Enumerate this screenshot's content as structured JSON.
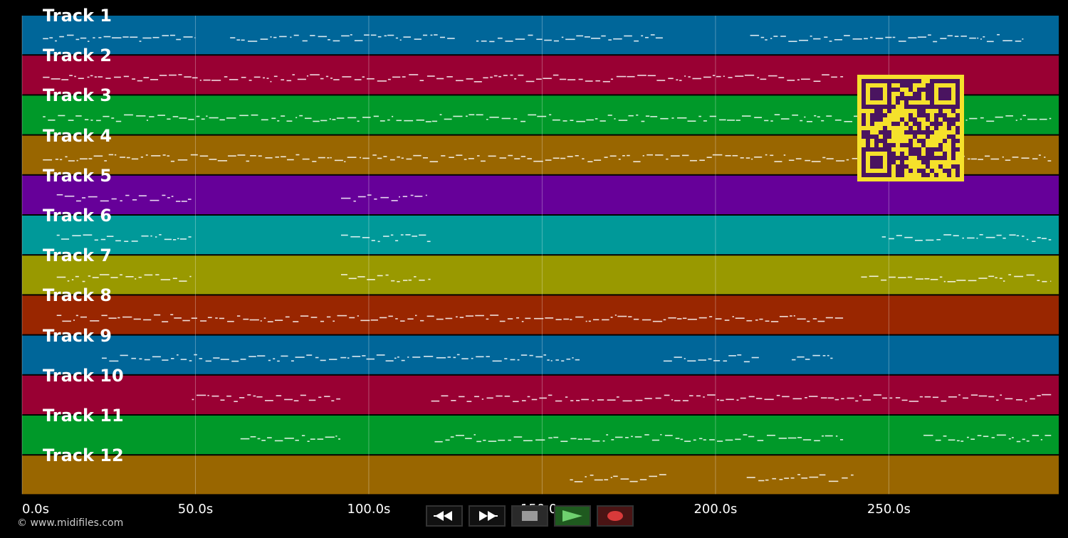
{
  "tracks": [
    {
      "label": "Track 1",
      "color": "#006699"
    },
    {
      "label": "Track 2",
      "color": "#990033"
    },
    {
      "label": "Track 3",
      "color": "#009929"
    },
    {
      "label": "Track 4",
      "color": "#996600"
    },
    {
      "label": "Track 5",
      "color": "#660099"
    },
    {
      "label": "Track 6",
      "color": "#009999"
    },
    {
      "label": "Track 7",
      "color": "#999900"
    },
    {
      "label": "Track 8",
      "color": "#992600"
    },
    {
      "label": "Track 9",
      "color": "#006699"
    },
    {
      "label": "Track 10",
      "color": "#990033"
    },
    {
      "label": "Track 11",
      "color": "#009929"
    },
    {
      "label": "Track 12",
      "color": "#996600"
    }
  ],
  "timeline": {
    "ticks": [
      "0.0s",
      "50.0s",
      "100.0s",
      "150.0s",
      "200.0s",
      "250.0s"
    ],
    "tick_values": [
      0,
      50,
      100,
      150,
      200,
      250
    ],
    "max_seconds": 299
  },
  "note_activity": [
    [
      [
        6,
        50
      ],
      [
        60,
        125
      ],
      [
        131,
        185
      ],
      [
        210,
        289
      ]
    ],
    [
      [
        6,
        237
      ]
    ],
    [
      [
        6,
        297
      ]
    ],
    [
      [
        6,
        297
      ]
    ],
    [
      [
        10,
        49
      ],
      [
        92,
        117
      ]
    ],
    [
      [
        10,
        49
      ],
      [
        92,
        118
      ],
      [
        248,
        297
      ]
    ],
    [
      [
        10,
        49
      ],
      [
        92,
        118
      ],
      [
        242,
        297
      ]
    ],
    [
      [
        10,
        237
      ]
    ],
    [
      [
        23,
        161
      ],
      [
        185,
        213
      ],
      [
        222,
        234
      ]
    ],
    [
      [
        49,
        92
      ],
      [
        118,
        297
      ]
    ],
    [
      [
        63,
        92
      ],
      [
        119,
        237
      ],
      [
        260,
        297
      ]
    ],
    [
      [
        158,
        186
      ],
      [
        209,
        240
      ]
    ]
  ],
  "transport": {
    "rewind_icon": "rewind-icon",
    "fast_forward_icon": "fast-forward-icon",
    "stop_icon": "stop-icon",
    "play_icon": "play-icon",
    "record_icon": "record-icon"
  },
  "copyright": "© www.midifiles.com",
  "qr_code": {
    "icon": "qr-code-icon",
    "color": "#f5e12b"
  }
}
